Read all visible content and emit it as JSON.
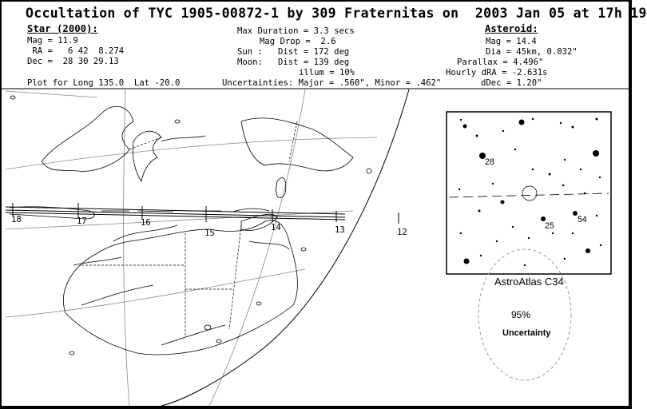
{
  "title": "Occultation of TYC 1905-00872-1 by 309 Fraternitas on  2003 Jan 05 at 17h 19",
  "star": {
    "header": "Star (2000):",
    "mag": "Mag = 11.9",
    "ra": " RA =   6 42  8.274",
    "dec": "Dec =  28 30 29.13"
  },
  "event": {
    "max_duration": "Max Duration = 3.3 secs",
    "mag_drop": "Mag Drop =  2.6",
    "sun": "Sun :   Dist = 172 deg",
    "moon": "Moon:   Dist = 139 deg",
    "illum": "illum = 10%"
  },
  "asteroid": {
    "header": "Asteroid:",
    "mag": "Mag = 14.4",
    "dia": "Dia = 45km, 0.032\"",
    "parallax": "Parallax = 4.496\"",
    "hourly_dra": "Hourly dRA = -2.631s",
    "ddec": "dDec = 1.20\""
  },
  "plot_for": "Plot for Long 135.0  Lat -20.0",
  "uncertainties": "Uncertainties: Major = .560\", Minor = .462\"",
  "time_ticks": [
    {
      "label": "18"
    },
    {
      "label": "17"
    },
    {
      "label": "16"
    },
    {
      "label": "15"
    },
    {
      "label": "14"
    },
    {
      "label": "13"
    },
    {
      "label": "12"
    }
  ],
  "star_chart": {
    "caption": "AstroAtlas C34",
    "star_labels": [
      "28",
      "25",
      "54"
    ]
  },
  "uncertainty_ellipse": {
    "percent": "95%",
    "label": "Uncertainty"
  }
}
